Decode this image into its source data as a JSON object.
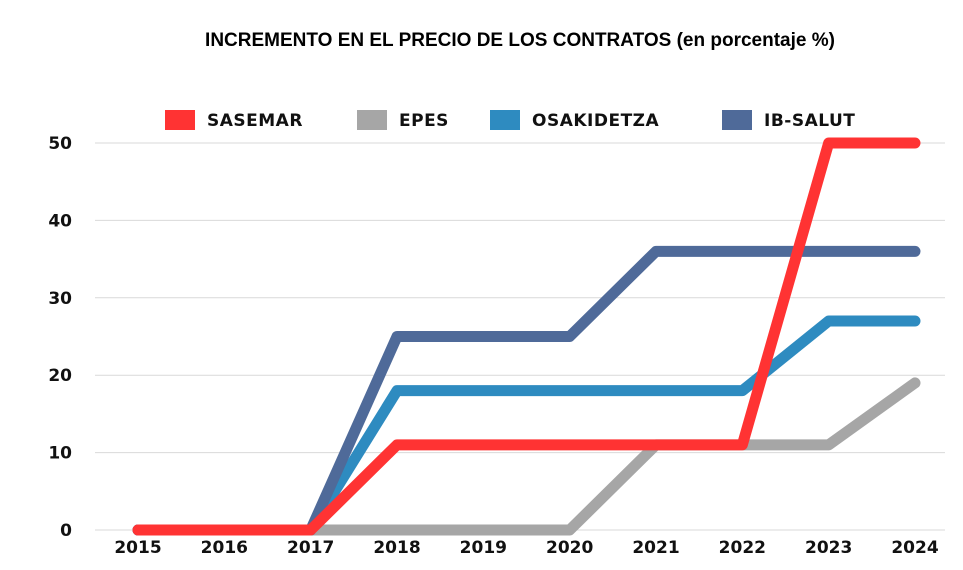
{
  "chart_data": {
    "type": "line",
    "title": "INCREMENTO EN EL PRECIO DE LOS CONTRATOS (en porcentaje %)",
    "xlabel": "",
    "ylabel": "",
    "categories": [
      "2015",
      "2016",
      "2017",
      "2018",
      "2019",
      "2020",
      "2021",
      "2022",
      "2023",
      "2024"
    ],
    "ylim": [
      0,
      50
    ],
    "yticks": [
      0,
      10,
      20,
      30,
      40,
      50
    ],
    "grid": "horizontal",
    "legend_position": "top",
    "series": [
      {
        "name": "SASEMAR",
        "color": "#ff3333",
        "values": [
          0,
          0,
          0,
          11,
          11,
          11,
          11,
          11,
          50,
          50
        ]
      },
      {
        "name": "EPES",
        "color": "#a6a6a6",
        "values": [
          0,
          0,
          0,
          0,
          0,
          0,
          11,
          11,
          11,
          19
        ]
      },
      {
        "name": "OSAKIDETZA",
        "color": "#2e8bc0",
        "values": [
          0,
          0,
          0,
          18,
          18,
          18,
          18,
          18,
          27,
          27
        ]
      },
      {
        "name": "IB-SALUT",
        "color": "#4f6a99",
        "values": [
          0,
          0,
          0,
          25,
          25,
          25,
          36,
          36,
          36,
          36
        ]
      }
    ]
  }
}
